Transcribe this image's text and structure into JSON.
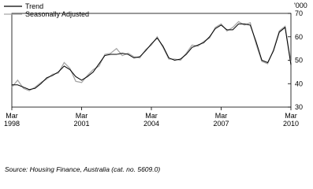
{
  "chart_data": {
    "type": "line",
    "x": [
      "1998-03",
      "1998-06",
      "1998-09",
      "1998-12",
      "1999-03",
      "1999-06",
      "1999-09",
      "1999-12",
      "2000-03",
      "2000-06",
      "2000-09",
      "2000-12",
      "2001-03",
      "2001-06",
      "2001-09",
      "2001-12",
      "2002-03",
      "2002-06",
      "2002-09",
      "2002-12",
      "2003-03",
      "2003-06",
      "2003-09",
      "2003-12",
      "2004-03",
      "2004-06",
      "2004-09",
      "2004-12",
      "2005-03",
      "2005-06",
      "2005-09",
      "2005-12",
      "2006-03",
      "2006-06",
      "2006-09",
      "2006-12",
      "2007-03",
      "2007-06",
      "2007-09",
      "2007-12",
      "2008-03",
      "2008-06",
      "2008-09",
      "2008-12",
      "2009-03",
      "2009-06",
      "2009-09",
      "2009-12",
      "2010-03"
    ],
    "series": [
      {
        "name": "Trend",
        "color": "#000000",
        "values": [
          39.5,
          39.5,
          38.5,
          37.5,
          38,
          40,
          42.5,
          43.5,
          45,
          47.5,
          46,
          43,
          41.5,
          43,
          45,
          48.5,
          52,
          52.5,
          52.5,
          53,
          52.5,
          51,
          51.5,
          54,
          57,
          59.5,
          56,
          51,
          50,
          50.5,
          52.5,
          55.5,
          56.5,
          57.5,
          60,
          63.5,
          65,
          63,
          63,
          65.5,
          65.5,
          65,
          58,
          50,
          49,
          54,
          62,
          64,
          48
        ]
      },
      {
        "name": "Seasonally Adjusted",
        "color": "#a6a6a6",
        "values": [
          38.5,
          41.5,
          38,
          37,
          38.5,
          40.5,
          42,
          44,
          44.5,
          49,
          46.5,
          41,
          40.5,
          43.5,
          46,
          47.5,
          52.5,
          53,
          55,
          52,
          53,
          51.5,
          51,
          54.5,
          56.5,
          60,
          55.5,
          50.5,
          50.5,
          50,
          53,
          56.5,
          56,
          58,
          59.5,
          64,
          65.5,
          62.5,
          64,
          66.5,
          65,
          66,
          57,
          49.5,
          48.5,
          54.5,
          62.5,
          64.5,
          49
        ]
      }
    ],
    "ylim": [
      30,
      70
    ],
    "yticks": [
      30,
      40,
      50,
      60,
      70
    ],
    "y_unit": "'000",
    "xlim": [
      "1998-03",
      "2010-03"
    ],
    "xticks": [
      {
        "value": "1998-03",
        "label": "Mar 1998"
      },
      {
        "value": "2001-03",
        "label": "Mar 2001"
      },
      {
        "value": "2004-03",
        "label": "Mar 2004"
      },
      {
        "value": "2007-03",
        "label": "Mar 2007"
      },
      {
        "value": "2010-03",
        "label": "Mar 2010"
      }
    ],
    "source": "Source: Housing Finance, Australia (cat. no. 5609.0)"
  }
}
